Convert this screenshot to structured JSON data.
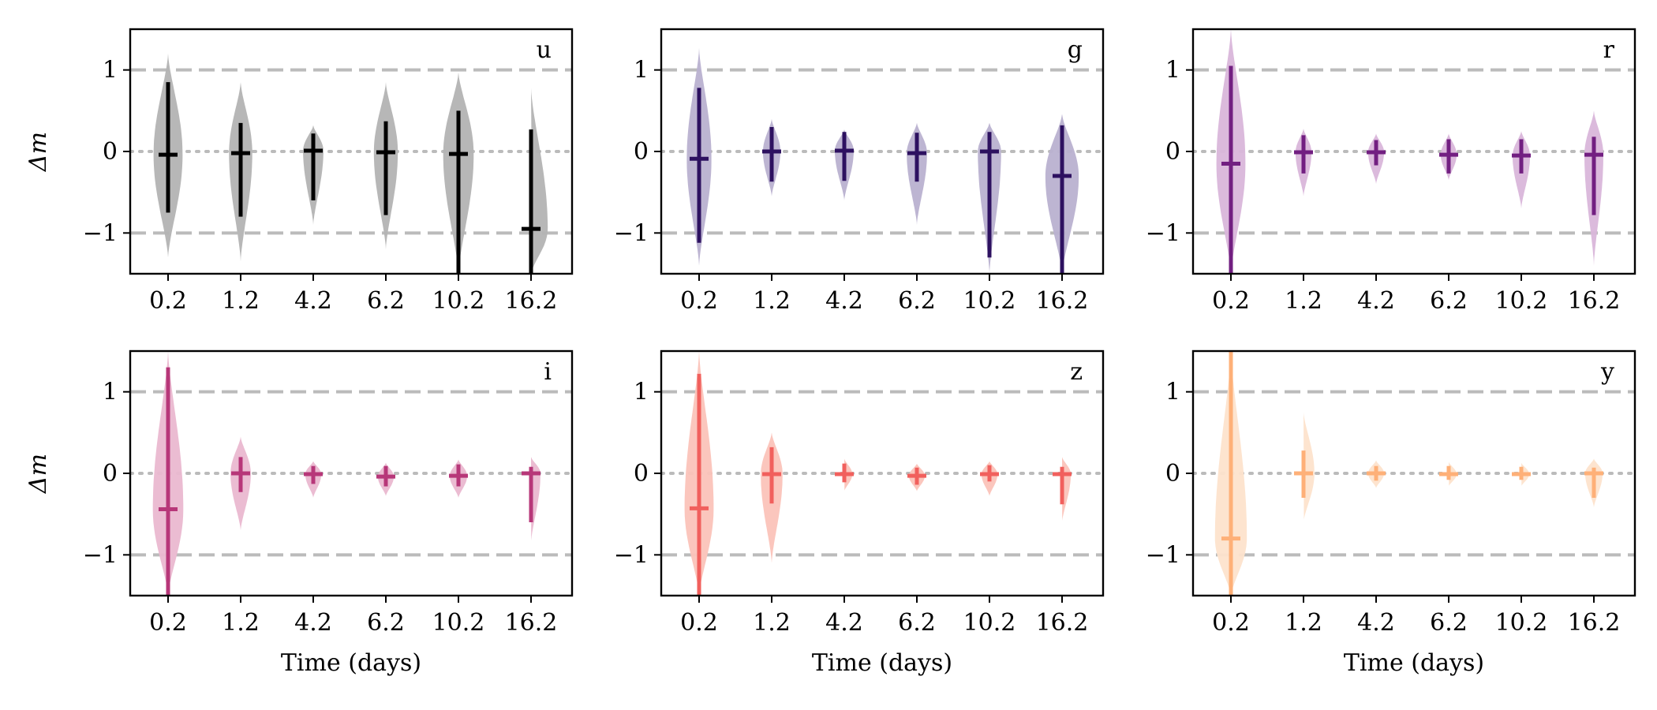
{
  "chart_data": {
    "type": "violin",
    "ylabel": "Δm",
    "xlabel": "Time (days)",
    "categories": [
      "0.2",
      "1.2",
      "4.2",
      "6.2",
      "10.2",
      "16.2"
    ],
    "yticks": [
      -1,
      0,
      1
    ],
    "ytick_labels": [
      "−1",
      "0",
      "1"
    ],
    "ylim": [
      -1.5,
      1.5
    ],
    "reference_lines": [
      {
        "y": 1,
        "style": "dashed",
        "color": "#bbbbbb"
      },
      {
        "y": -1,
        "style": "dashed",
        "color": "#bbbbbb"
      },
      {
        "y": 0,
        "style": "dotted",
        "color": "#bbbbbb"
      }
    ],
    "panels": [
      {
        "band": "u",
        "color": "#000000",
        "fill": "#b3b3b3",
        "violins": [
          {
            "median": -0.04,
            "low": -0.75,
            "high": 0.85,
            "ext_low": -1.3,
            "ext_high": 1.2,
            "width": 0.4
          },
          {
            "median": -0.02,
            "low": -0.8,
            "high": 0.35,
            "ext_low": -1.35,
            "ext_high": 0.85,
            "width": 0.32
          },
          {
            "median": 0.01,
            "low": -0.6,
            "high": 0.22,
            "ext_low": -0.9,
            "ext_high": 0.32,
            "width": 0.28
          },
          {
            "median": -0.01,
            "low": -0.78,
            "high": 0.37,
            "ext_low": -1.2,
            "ext_high": 0.85,
            "width": 0.33
          },
          {
            "median": -0.03,
            "low": -1.5,
            "high": 0.5,
            "ext_low": -1.5,
            "ext_high": 0.97,
            "width": 0.42
          },
          {
            "median": -0.95,
            "low": -1.5,
            "high": 0.27,
            "ext_low": -1.5,
            "ext_high": 0.78,
            "width": 0.46
          }
        ]
      },
      {
        "band": "g",
        "color": "#2d1160",
        "fill": "#b9b1d0",
        "violins": [
          {
            "median": -0.09,
            "low": -1.12,
            "high": 0.78,
            "ext_low": -1.4,
            "ext_high": 1.27,
            "width": 0.34
          },
          {
            "median": 0.0,
            "low": -0.37,
            "high": 0.3,
            "ext_low": -0.55,
            "ext_high": 0.4,
            "width": 0.24
          },
          {
            "median": 0.01,
            "low": -0.36,
            "high": 0.24,
            "ext_low": -0.6,
            "ext_high": 0.27,
            "width": 0.26
          },
          {
            "median": -0.02,
            "low": -0.37,
            "high": 0.23,
            "ext_low": -0.9,
            "ext_high": 0.35,
            "width": 0.28
          },
          {
            "median": 0.0,
            "low": -1.3,
            "high": 0.24,
            "ext_low": -1.5,
            "ext_high": 0.35,
            "width": 0.32
          },
          {
            "median": -0.3,
            "low": -1.5,
            "high": 0.32,
            "ext_low": -1.5,
            "ext_high": 0.46,
            "width": 0.46
          }
        ]
      },
      {
        "band": "r",
        "color": "#721f81",
        "fill": "#d9b6da",
        "violins": [
          {
            "median": -0.15,
            "low": -1.5,
            "high": 1.05,
            "ext_low": -1.5,
            "ext_high": 1.5,
            "width": 0.4
          },
          {
            "median": -0.01,
            "low": -0.27,
            "high": 0.2,
            "ext_low": -0.55,
            "ext_high": 0.28,
            "width": 0.22
          },
          {
            "median": -0.01,
            "low": -0.17,
            "high": 0.14,
            "ext_low": -0.4,
            "ext_high": 0.22,
            "width": 0.22
          },
          {
            "median": -0.04,
            "low": -0.27,
            "high": 0.15,
            "ext_low": -0.35,
            "ext_high": 0.22,
            "width": 0.22
          },
          {
            "median": -0.05,
            "low": -0.27,
            "high": 0.15,
            "ext_low": -0.7,
            "ext_high": 0.25,
            "width": 0.24
          },
          {
            "median": -0.04,
            "low": -0.78,
            "high": 0.18,
            "ext_low": -1.4,
            "ext_high": 0.5,
            "width": 0.26
          }
        ]
      },
      {
        "band": "i",
        "color": "#b73779",
        "fill": "#eab8d0",
        "violins": [
          {
            "median": -0.44,
            "low": -1.5,
            "high": 1.3,
            "ext_low": -1.5,
            "ext_high": 1.5,
            "width": 0.42
          },
          {
            "median": 0.0,
            "low": -0.23,
            "high": 0.2,
            "ext_low": -0.7,
            "ext_high": 0.45,
            "width": 0.28
          },
          {
            "median": -0.01,
            "low": -0.13,
            "high": 0.09,
            "ext_low": -0.3,
            "ext_high": 0.15,
            "width": 0.22
          },
          {
            "median": -0.04,
            "low": -0.16,
            "high": 0.09,
            "ext_low": -0.28,
            "ext_high": 0.13,
            "width": 0.22
          },
          {
            "median": -0.03,
            "low": -0.16,
            "high": 0.11,
            "ext_low": -0.3,
            "ext_high": 0.17,
            "width": 0.24
          },
          {
            "median": 0.0,
            "low": -0.6,
            "high": 0.08,
            "ext_low": -0.85,
            "ext_high": 0.2,
            "width": 0.26
          }
        ]
      },
      {
        "band": "z",
        "color": "#f1605d",
        "fill": "#fbc3b9",
        "violins": [
          {
            "median": -0.43,
            "low": -1.5,
            "high": 1.22,
            "ext_low": -1.5,
            "ext_high": 1.5,
            "width": 0.4
          },
          {
            "median": -0.01,
            "low": -0.37,
            "high": 0.32,
            "ext_low": -1.1,
            "ext_high": 0.5,
            "width": 0.3
          },
          {
            "median": -0.01,
            "low": -0.11,
            "high": 0.12,
            "ext_low": -0.22,
            "ext_high": 0.18,
            "width": 0.22
          },
          {
            "median": -0.03,
            "low": -0.14,
            "high": 0.07,
            "ext_low": -0.22,
            "ext_high": 0.12,
            "width": 0.22
          },
          {
            "median": -0.01,
            "low": -0.1,
            "high": 0.1,
            "ext_low": -0.28,
            "ext_high": 0.15,
            "width": 0.22
          },
          {
            "median": -0.01,
            "low": -0.38,
            "high": 0.08,
            "ext_low": -0.6,
            "ext_high": 0.2,
            "width": 0.24
          }
        ]
      },
      {
        "band": "y",
        "color": "#feb078",
        "fill": "#fde3cc",
        "violins": [
          {
            "median": -0.8,
            "low": -1.5,
            "high": 1.5,
            "ext_low": -1.5,
            "ext_high": 1.5,
            "width": 0.44
          },
          {
            "median": 0.0,
            "low": -0.3,
            "high": 0.28,
            "ext_low": -0.6,
            "ext_high": 0.75,
            "width": 0.3
          },
          {
            "median": 0.0,
            "low": -0.09,
            "high": 0.09,
            "ext_low": -0.18,
            "ext_high": 0.16,
            "width": 0.22
          },
          {
            "median": -0.01,
            "low": -0.08,
            "high": 0.09,
            "ext_low": -0.16,
            "ext_high": 0.14,
            "width": 0.22
          },
          {
            "median": -0.01,
            "low": -0.08,
            "high": 0.08,
            "ext_low": -0.16,
            "ext_high": 0.13,
            "width": 0.22
          },
          {
            "median": 0.0,
            "low": -0.3,
            "high": 0.07,
            "ext_low": -0.42,
            "ext_high": 0.18,
            "width": 0.24
          }
        ]
      }
    ]
  }
}
